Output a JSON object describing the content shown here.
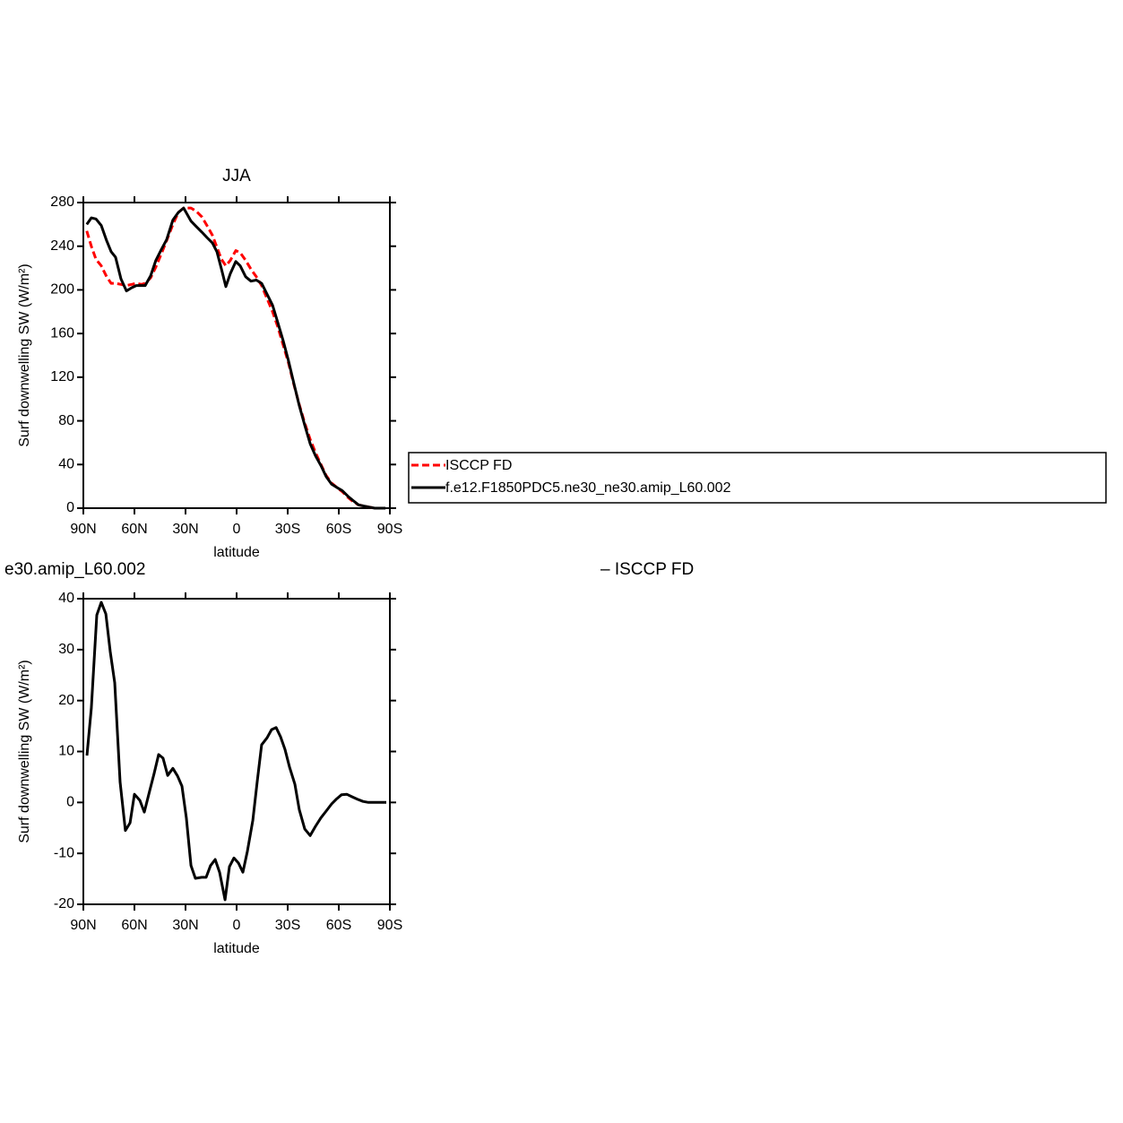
{
  "chart_data": [
    {
      "type": "line",
      "title": "JJA",
      "xlabel": "latitude",
      "ylabel": "Surf downwelling SW (W/m²)",
      "x": [
        88.0,
        85.3,
        82.6,
        79.5,
        76.3,
        73.7,
        71.1,
        67.9,
        64.7,
        61.6,
        58.9,
        55.8,
        53.7,
        50.5,
        47.4,
        44.2,
        41.1,
        37.4,
        34.2,
        31.1,
        26.8,
        23.7,
        20.5,
        17.4,
        14.2,
        11.6,
        8.9,
        6.3,
        3.7,
        0.5,
        -2.1,
        -5.3,
        -8.4,
        -11.6,
        -14.7,
        -17.9,
        -21.1,
        -24.2,
        -27.4,
        -30.5,
        -33.7,
        -36.8,
        -40.0,
        -43.2,
        -46.3,
        -49.5,
        -52.6,
        -55.8,
        -58.9,
        -62.1,
        -65.3,
        -68.4,
        -71.6,
        -74.7,
        -77.9,
        -81.1,
        -84.2,
        -87.4
      ],
      "series": [
        {
          "name": "ISCCP FD",
          "color": "#ff0000",
          "style": "dashed",
          "values": [
            254,
            240,
            228,
            222,
            212,
            206,
            206,
            205,
            204,
            205,
            206,
            205,
            206,
            211,
            221,
            233,
            245,
            260,
            271,
            275,
            275,
            272,
            267,
            259,
            250,
            239,
            228,
            222,
            227,
            236,
            234,
            227,
            219,
            212,
            204,
            192,
            180,
            166,
            149,
            133,
            113,
            95,
            78,
            63,
            51,
            40,
            30,
            23,
            19,
            15,
            10,
            6,
            3,
            2,
            1,
            0,
            0,
            0
          ]
        },
        {
          "name": "f.e12.F1850PDC5.ne30_ne30.amip_L60.002",
          "color": "#000000",
          "style": "solid",
          "values": [
            260,
            266,
            265,
            259,
            245,
            235,
            230,
            210,
            199,
            202,
            204,
            204,
            204,
            213,
            227,
            237,
            246,
            264,
            271,
            275,
            263,
            258,
            253,
            248,
            243,
            235,
            219,
            203,
            215,
            226,
            222,
            212,
            208,
            209,
            206,
            196,
            186,
            170,
            153,
            135,
            114,
            94,
            76,
            59,
            48,
            39,
            29,
            22,
            19,
            16,
            11,
            7,
            3,
            2,
            1,
            0,
            0,
            0
          ]
        }
      ],
      "xlim": [
        90,
        -90
      ],
      "xticks": [
        {
          "value": 90,
          "label": "90N"
        },
        {
          "value": 60,
          "label": "60N"
        },
        {
          "value": 30,
          "label": "30N"
        },
        0,
        {
          "value": -30,
          "label": "30S"
        },
        {
          "value": -60,
          "label": "60S"
        },
        {
          "value": -90,
          "label": "90S"
        }
      ],
      "ylim": [
        0,
        280
      ],
      "yticks": [
        0,
        40,
        80,
        120,
        160,
        200,
        240,
        280
      ],
      "legend": "right"
    },
    {
      "type": "line",
      "title": "e30.amip_L60.002",
      "annotation": "– ISCCP FD",
      "xlabel": "latitude",
      "ylabel": "Surf downwelling SW (W/m²)",
      "x": [
        87.9,
        85.3,
        82.1,
        79.5,
        76.8,
        74.2,
        71.6,
        68.4,
        65.3,
        62.6,
        60.0,
        56.8,
        54.2,
        51.1,
        48.4,
        45.8,
        43.2,
        40.5,
        37.4,
        34.7,
        32.1,
        29.5,
        26.8,
        24.2,
        20.5,
        17.9,
        15.3,
        12.6,
        10.0,
        6.8,
        4.2,
        1.6,
        -1.1,
        -3.7,
        -6.3,
        -9.5,
        -12.1,
        -14.7,
        -17.9,
        -20.5,
        -23.2,
        -25.8,
        -28.4,
        -31.1,
        -34.2,
        -36.8,
        -40.0,
        -43.2,
        -46.3,
        -49.5,
        -52.6,
        -55.8,
        -58.4,
        -61.6,
        -64.7,
        -67.9,
        -71.1,
        -74.2,
        -77.4,
        -81.1,
        -84.7,
        -87.9
      ],
      "series": [
        {
          "color": "#000000",
          "style": "solid",
          "values": [
            9.2,
            18.5,
            36.8,
            39.3,
            37,
            29.6,
            23.5,
            4,
            -5.5,
            -4,
            1.6,
            0.4,
            -1.9,
            2.2,
            5.7,
            9.4,
            8.7,
            5.3,
            6.7,
            5.2,
            3.2,
            -3,
            -12.4,
            -14.9,
            -14.7,
            -14.7,
            -12.4,
            -11.2,
            -13.7,
            -19.1,
            -12.6,
            -10.9,
            -11.9,
            -13.7,
            -9.6,
            -3.5,
            4.1,
            11.3,
            12.7,
            14.3,
            14.7,
            12.9,
            10.4,
            6.9,
            3.6,
            -1.4,
            -5.2,
            -6.5,
            -4.7,
            -3,
            -1.7,
            -0.3,
            0.6,
            1.5,
            1.6,
            1.1,
            0.6,
            0.2,
            0,
            0,
            0,
            0
          ]
        }
      ],
      "xlim": [
        90,
        -90
      ],
      "xticks": [
        {
          "value": 90,
          "label": "90N"
        },
        {
          "value": 60,
          "label": "60N"
        },
        {
          "value": 30,
          "label": "30N"
        },
        0,
        {
          "value": -30,
          "label": "30S"
        },
        {
          "value": -60,
          "label": "60S"
        },
        {
          "value": -90,
          "label": "90S"
        }
      ],
      "ylim": [
        -20,
        40
      ],
      "yticks": [
        -20,
        -10,
        0,
        10,
        20,
        30,
        40
      ]
    }
  ]
}
